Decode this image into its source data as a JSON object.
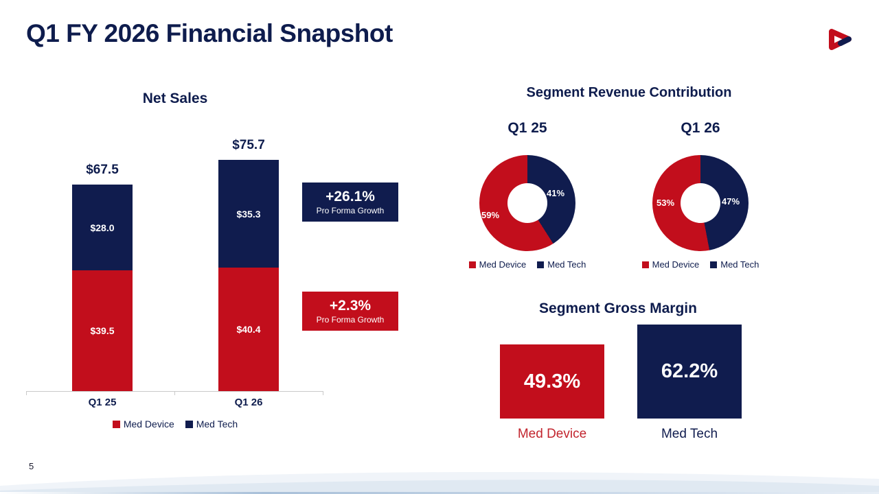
{
  "slide": {
    "title": "Q1 FY 2026 Financial Snapshot",
    "page_number": "5"
  },
  "colors": {
    "med_device_red": "#C20E1C",
    "med_tech_navy": "#101C4E"
  },
  "icons": {
    "logo": "triangular-knot-logo"
  },
  "net_sales": {
    "title": "Net Sales",
    "bars": [
      {
        "category": "Q1 25",
        "total": "$67.5",
        "device": "$39.5",
        "tech": "$28.0"
      },
      {
        "category": "Q1 26",
        "total": "$75.7",
        "device": "$40.4",
        "tech": "$35.3"
      }
    ],
    "legend": [
      "Med Device",
      "Med Tech"
    ],
    "callout_tech": {
      "value": "+26.1%",
      "label": "Pro Forma Growth"
    },
    "callout_device": {
      "value": "+2.3%",
      "label": "Pro Forma Growth"
    }
  },
  "segment_revenue": {
    "title": "Segment Revenue Contribution",
    "donuts": [
      {
        "heading": "Q1 25",
        "device_pct": "59%",
        "tech_pct": "41%"
      },
      {
        "heading": "Q1 26",
        "device_pct": "53%",
        "tech_pct": "47%"
      }
    ],
    "legend": [
      "Med Device",
      "Med Tech"
    ]
  },
  "gross_margin": {
    "title": "Segment Gross Margin",
    "bars": [
      {
        "value": "49.3%",
        "label": "Med Device"
      },
      {
        "value": "62.2%",
        "label": "Med Tech"
      }
    ]
  },
  "chart_data": [
    {
      "type": "bar",
      "subtype": "stacked",
      "title": "Net Sales",
      "categories": [
        "Q1 25",
        "Q1 26"
      ],
      "series": [
        {
          "name": "Med Device",
          "values": [
            39.5,
            40.4
          ],
          "color": "#C20E1C"
        },
        {
          "name": "Med Tech",
          "values": [
            28.0,
            35.3
          ],
          "color": "#101C4E"
        }
      ],
      "totals": [
        67.5,
        75.7
      ],
      "annotations": [
        {
          "text": "+26.1% Pro Forma Growth",
          "series": "Med Tech"
        },
        {
          "text": "+2.3% Pro Forma Growth",
          "series": "Med Device"
        }
      ],
      "legend_position": "bottom",
      "grid": false
    },
    {
      "type": "pie",
      "subtype": "donut",
      "title": "Segment Revenue Contribution Q1 25",
      "labels": [
        "Med Device",
        "Med Tech"
      ],
      "values": [
        59,
        41
      ],
      "colors": [
        "#C20E1C",
        "#101C4E"
      ],
      "legend_position": "bottom"
    },
    {
      "type": "pie",
      "subtype": "donut",
      "title": "Segment Revenue Contribution Q1 26",
      "labels": [
        "Med Device",
        "Med Tech"
      ],
      "values": [
        53,
        47
      ],
      "colors": [
        "#C20E1C",
        "#101C4E"
      ],
      "legend_position": "bottom"
    },
    {
      "type": "bar",
      "title": "Segment Gross Margin",
      "categories": [
        "Med Device",
        "Med Tech"
      ],
      "values": [
        49.3,
        62.2
      ],
      "unit": "%",
      "colors": [
        "#C20E1C",
        "#101C4E"
      ],
      "grid": false
    }
  ]
}
